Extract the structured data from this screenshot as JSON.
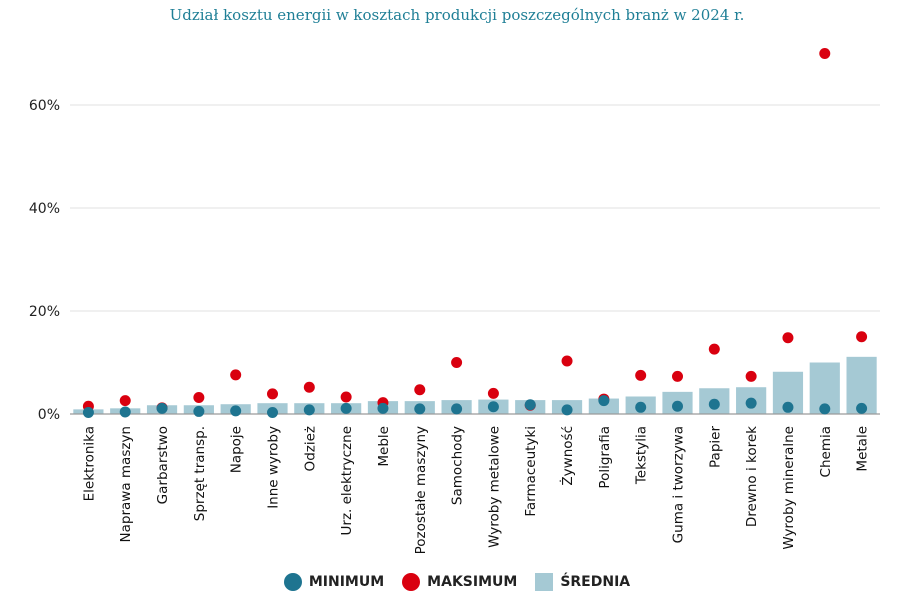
{
  "colors": {
    "minimum": "#1e7490",
    "maximum": "#d9000f",
    "srednia": "#a5c9d4",
    "grid": "#e2e2e2",
    "axis": "#9a9a9a",
    "title": "#1f7f96"
  },
  "chart_data": {
    "type": "bar",
    "title": "Udział kosztu energii w kosztach produkcji poszczególnych branż w 2024 r.",
    "xlabel": "",
    "ylabel": "",
    "ylim": [
      0,
      70
    ],
    "yticks": [
      0,
      20,
      40,
      60
    ],
    "ytick_labels": [
      "0%",
      "20%",
      "40%",
      "60%"
    ],
    "grid": true,
    "legend_position": "bottom",
    "categories": [
      "Elektronika",
      "Naprawa maszyn",
      "Garbarstwo",
      "Sprzęt transp.",
      "Napoje",
      "Inne wyroby",
      "Odzież",
      "Urz. elektryczne",
      "Meble",
      "Pozostałe maszyny",
      "Samochody",
      "Wyroby metalowe",
      "Farmaceutyki",
      "Żywność",
      "Poligrafia",
      "Tekstylia",
      "Guma i tworzywa",
      "Papier",
      "Drewno i korek",
      "Wyroby mineralne",
      "Chemia",
      "Metale"
    ],
    "series": [
      {
        "name": "ŚREDNIA",
        "kind": "bar",
        "values": [
          0.9,
          1.1,
          1.7,
          1.7,
          1.9,
          2.1,
          2.1,
          2.1,
          2.5,
          2.5,
          2.7,
          2.8,
          2.7,
          2.7,
          3.0,
          3.4,
          4.3,
          5.0,
          5.2,
          8.2,
          10.0,
          11.1
        ]
      },
      {
        "name": "MINIMUM",
        "kind": "point",
        "values": [
          0.3,
          0.4,
          1.1,
          0.5,
          0.6,
          0.3,
          0.8,
          1.1,
          1.1,
          1.0,
          1.0,
          1.4,
          1.8,
          0.8,
          2.6,
          1.3,
          1.5,
          1.9,
          2.1,
          1.3,
          1.0,
          1.1
        ]
      },
      {
        "name": "MAKSIMUM",
        "kind": "point",
        "values": [
          1.5,
          2.6,
          1.2,
          3.2,
          7.6,
          3.9,
          5.2,
          3.3,
          2.2,
          4.7,
          10.0,
          4.0,
          1.7,
          10.3,
          2.9,
          7.5,
          7.3,
          12.6,
          7.3,
          14.8,
          70.0,
          15.0
        ]
      }
    ]
  },
  "legend": [
    {
      "label": "MINIMUM",
      "type": "dot",
      "color_key": "minimum"
    },
    {
      "label": "MAKSIMUM",
      "type": "dot",
      "color_key": "maximum"
    },
    {
      "label": "ŚREDNIA",
      "type": "square",
      "color_key": "srednia"
    }
  ]
}
